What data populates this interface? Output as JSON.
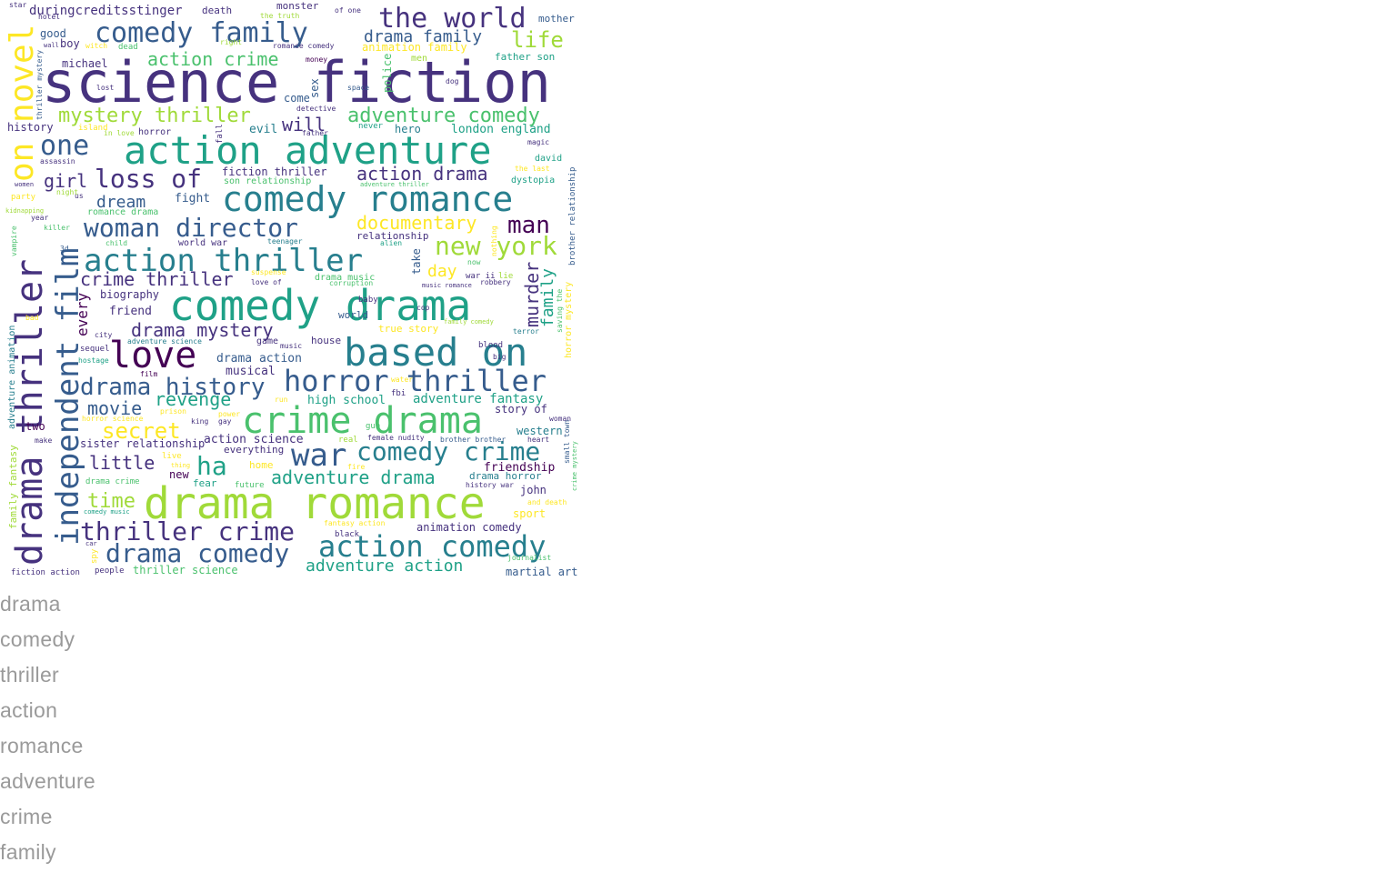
{
  "wordcloud": {
    "palette": [
      "#440154",
      "#46327e",
      "#365c8d",
      "#277f8e",
      "#1fa187",
      "#4ac16d",
      "#a0da39",
      "#fde725"
    ],
    "words": [
      {
        "text": "science fiction",
        "color": "#46327e"
      },
      {
        "text": "drama romance",
        "color": "#a0da39"
      },
      {
        "text": "action adventure",
        "color": "#1fa187"
      },
      {
        "text": "comedy drama",
        "color": "#1fa187"
      },
      {
        "text": "drama thriller",
        "color": "#46327e"
      },
      {
        "text": "comedy romance",
        "color": "#277f8e"
      },
      {
        "text": "based on",
        "color": "#277f8e"
      },
      {
        "text": "crime drama",
        "color": "#4ac16d"
      },
      {
        "text": "independent film",
        "color": "#365c8d"
      },
      {
        "text": "action thriller",
        "color": "#277f8e"
      },
      {
        "text": "horror thriller",
        "color": "#365c8d"
      },
      {
        "text": "the world",
        "color": "#46327e"
      },
      {
        "text": "comedy family",
        "color": "#365c8d"
      },
      {
        "text": "on novel",
        "color": "#fde725"
      },
      {
        "text": "love",
        "color": "#440154"
      },
      {
        "text": "woman director",
        "color": "#365c8d"
      },
      {
        "text": "action comedy",
        "color": "#277f8e"
      },
      {
        "text": "war",
        "color": "#365c8d"
      },
      {
        "text": "loss of",
        "color": "#46327e"
      },
      {
        "text": "drama history",
        "color": "#365c8d"
      },
      {
        "text": "thriller crime",
        "color": "#46327e"
      },
      {
        "text": "comedy crime",
        "color": "#277f8e"
      },
      {
        "text": "drama comedy",
        "color": "#365c8d"
      },
      {
        "text": "new york",
        "color": "#a0da39"
      },
      {
        "text": "man",
        "color": "#440154"
      },
      {
        "text": "one",
        "color": "#365c8d"
      },
      {
        "text": "ha",
        "color": "#1fa187"
      },
      {
        "text": "mystery thriller",
        "color": "#a0da39"
      },
      {
        "text": "adventure comedy",
        "color": "#4ac16d"
      },
      {
        "text": "life",
        "color": "#a0da39"
      },
      {
        "text": "secret",
        "color": "#fde725"
      },
      {
        "text": "adventure drama",
        "color": "#1fa187"
      },
      {
        "text": "documentary",
        "color": "#fde725"
      },
      {
        "text": "crime thriller",
        "color": "#46327e"
      },
      {
        "text": "drama mystery",
        "color": "#46327e"
      },
      {
        "text": "drama family",
        "color": "#365c8d"
      },
      {
        "text": "action crime",
        "color": "#4ac16d"
      },
      {
        "text": "action drama",
        "color": "#46327e"
      },
      {
        "text": "adventure action",
        "color": "#1fa187"
      },
      {
        "text": "time",
        "color": "#a0da39"
      },
      {
        "text": "movie",
        "color": "#365c8d"
      },
      {
        "text": "revenge",
        "color": "#1fa187"
      },
      {
        "text": "little",
        "color": "#46327e"
      },
      {
        "text": "will",
        "color": "#46327e"
      },
      {
        "text": "girl",
        "color": "#46327e"
      },
      {
        "text": "dream",
        "color": "#365c8d"
      },
      {
        "text": "murder",
        "color": "#46327e"
      },
      {
        "text": "family",
        "color": "#1fa187"
      },
      {
        "text": "day",
        "color": "#fde725"
      },
      {
        "text": "every",
        "color": "#440154"
      },
      {
        "text": "duringcreditsstinger",
        "color": "#46327e"
      },
      {
        "text": "adventure fantasy",
        "color": "#1fa187"
      },
      {
        "text": "high school",
        "color": "#1fa187"
      },
      {
        "text": "london england",
        "color": "#1fa187"
      },
      {
        "text": "friendship",
        "color": "#440154"
      },
      {
        "text": "animation comedy",
        "color": "#46327e"
      },
      {
        "text": "western",
        "color": "#277f8e"
      },
      {
        "text": "story of",
        "color": "#46327e"
      },
      {
        "text": "biography",
        "color": "#46327e"
      },
      {
        "text": "friend",
        "color": "#46327e"
      },
      {
        "text": "drama action",
        "color": "#365c8d"
      },
      {
        "text": "musical",
        "color": "#46327e"
      },
      {
        "text": "action science",
        "color": "#46327e"
      },
      {
        "text": "sister relationship",
        "color": "#46327e"
      },
      {
        "text": "thriller science",
        "color": "#4ac16d"
      },
      {
        "text": "martial art",
        "color": "#365c8d"
      },
      {
        "text": "animation family",
        "color": "#fde725"
      },
      {
        "text": "fiction thriller",
        "color": "#46327e"
      },
      {
        "text": "fight",
        "color": "#365c8d"
      },
      {
        "text": "good",
        "color": "#365c8d"
      },
      {
        "text": "boy",
        "color": "#46327e"
      },
      {
        "text": "michael",
        "color": "#46327e"
      },
      {
        "text": "evil",
        "color": "#277f8e"
      },
      {
        "text": "history",
        "color": "#46327e"
      },
      {
        "text": "two",
        "color": "#440154"
      },
      {
        "text": "new",
        "color": "#440154"
      },
      {
        "text": "john",
        "color": "#46327e"
      },
      {
        "text": "hero",
        "color": "#277f8e"
      },
      {
        "text": "sport",
        "color": "#fde725"
      },
      {
        "text": "father son",
        "color": "#1fa187"
      },
      {
        "text": "relationship",
        "color": "#46327e"
      },
      {
        "text": "drama horror",
        "color": "#277f8e"
      },
      {
        "text": "take",
        "color": "#365c8d"
      },
      {
        "text": "sex",
        "color": "#365c8d"
      },
      {
        "text": "police",
        "color": "#4ac16d"
      },
      {
        "text": "come",
        "color": "#365c8d"
      },
      {
        "text": "death",
        "color": "#46327e"
      },
      {
        "text": "monster",
        "color": "#46327e"
      },
      {
        "text": "mother",
        "color": "#365c8d"
      },
      {
        "text": "world",
        "color": "#365c8d"
      },
      {
        "text": "house",
        "color": "#46327e"
      },
      {
        "text": "everything",
        "color": "#46327e"
      },
      {
        "text": "true story",
        "color": "#fde725"
      },
      {
        "text": "drama music",
        "color": "#4ac16d"
      },
      {
        "text": "world war",
        "color": "#46327e"
      },
      {
        "text": "romance drama",
        "color": "#4ac16d"
      },
      {
        "text": "son relationship",
        "color": "#4ac16d"
      },
      {
        "text": "fear",
        "color": "#1fa187"
      },
      {
        "text": "home",
        "color": "#fde725"
      },
      {
        "text": "future",
        "color": "#4ac16d"
      },
      {
        "text": "game",
        "color": "#46327e"
      },
      {
        "text": "adventure science",
        "color": "#277f8e"
      },
      {
        "text": "family fantasy",
        "color": "#a0da39"
      },
      {
        "text": "adventure animation",
        "color": "#277f8e"
      },
      {
        "text": "brother relationship",
        "color": "#365c8d"
      },
      {
        "text": "horror mystery",
        "color": "#fde725"
      },
      {
        "text": "thriller mystery",
        "color": "#365c8d"
      },
      {
        "text": "drama crime",
        "color": "#4ac16d"
      },
      {
        "text": "david",
        "color": "#1fa187"
      },
      {
        "text": "dystopia",
        "color": "#1fa187"
      },
      {
        "text": "the last",
        "color": "#fde725"
      },
      {
        "text": "magic",
        "color": "#46327e"
      },
      {
        "text": "hotel",
        "color": "#46327e"
      },
      {
        "text": "star",
        "color": "#46327e"
      },
      {
        "text": "the truth",
        "color": "#a0da39"
      },
      {
        "text": "of one",
        "color": "#46327e"
      },
      {
        "text": "right",
        "color": "#a0da39"
      },
      {
        "text": "romance comedy",
        "color": "#46327e"
      },
      {
        "text": "witch",
        "color": "#fde725"
      },
      {
        "text": "dead",
        "color": "#4ac16d"
      },
      {
        "text": "money",
        "color": "#440154"
      },
      {
        "text": "men",
        "color": "#a0da39"
      },
      {
        "text": "dog",
        "color": "#46327e"
      },
      {
        "text": "space",
        "color": "#365c8d"
      },
      {
        "text": "lost",
        "color": "#46327e"
      },
      {
        "text": "detective",
        "color": "#46327e"
      },
      {
        "text": "never",
        "color": "#1fa187"
      },
      {
        "text": "father",
        "color": "#46327e"
      },
      {
        "text": "island",
        "color": "#fde725"
      },
      {
        "text": "horror",
        "color": "#46327e"
      },
      {
        "text": "in love",
        "color": "#a0da39"
      },
      {
        "text": "fall",
        "color": "#46327e"
      },
      {
        "text": "assassin",
        "color": "#46327e"
      },
      {
        "text": "women",
        "color": "#46327e"
      },
      {
        "text": "party",
        "color": "#fde725"
      },
      {
        "text": "night",
        "color": "#a0da39"
      },
      {
        "text": "us",
        "color": "#46327e"
      },
      {
        "text": "kidnapping",
        "color": "#a0da39"
      },
      {
        "text": "year",
        "color": "#46327e"
      },
      {
        "text": "killer",
        "color": "#4ac16d"
      },
      {
        "text": "vampire",
        "color": "#4ac16d"
      },
      {
        "text": "3d",
        "color": "#365c8d"
      },
      {
        "text": "child",
        "color": "#4ac16d"
      },
      {
        "text": "teenager",
        "color": "#277f8e"
      },
      {
        "text": "alien",
        "color": "#1fa187"
      },
      {
        "text": "nothing",
        "color": "#fde725"
      },
      {
        "text": "adventure thriller",
        "color": "#4ac16d"
      },
      {
        "text": "now",
        "color": "#4ac16d"
      },
      {
        "text": "war ii",
        "color": "#46327e"
      },
      {
        "text": "lie",
        "color": "#a0da39"
      },
      {
        "text": "robbery",
        "color": "#46327e"
      },
      {
        "text": "suspense",
        "color": "#fde725"
      },
      {
        "text": "love of",
        "color": "#46327e"
      },
      {
        "text": "corruption",
        "color": "#4ac16d"
      },
      {
        "text": "music romance",
        "color": "#46327e"
      },
      {
        "text": "cop",
        "color": "#46327e"
      },
      {
        "text": "baby",
        "color": "#46327e"
      },
      {
        "text": "family comedy",
        "color": "#a0da39"
      },
      {
        "text": "saving the",
        "color": "#4ac16d"
      },
      {
        "text": "terror",
        "color": "#277f8e"
      },
      {
        "text": "bad",
        "color": "#fde725"
      },
      {
        "text": "city",
        "color": "#46327e"
      },
      {
        "text": "music",
        "color": "#46327e"
      },
      {
        "text": "blood",
        "color": "#46327e"
      },
      {
        "text": "big",
        "color": "#46327e"
      },
      {
        "text": "sequel",
        "color": "#46327e"
      },
      {
        "text": "hostage",
        "color": "#1fa187"
      },
      {
        "text": "film",
        "color": "#440154"
      },
      {
        "text": "water",
        "color": "#fde725"
      },
      {
        "text": "run",
        "color": "#fde725"
      },
      {
        "text": "fbi",
        "color": "#46327e"
      },
      {
        "text": "prison",
        "color": "#fde725"
      },
      {
        "text": "power",
        "color": "#fde725"
      },
      {
        "text": "horror science",
        "color": "#fde725"
      },
      {
        "text": "king",
        "color": "#46327e"
      },
      {
        "text": "gay",
        "color": "#46327e"
      },
      {
        "text": "gun",
        "color": "#4ac16d"
      },
      {
        "text": "woman",
        "color": "#46327e"
      },
      {
        "text": "make",
        "color": "#46327e"
      },
      {
        "text": "female nudity",
        "color": "#46327e"
      },
      {
        "text": "real",
        "color": "#a0da39"
      },
      {
        "text": "brother brother",
        "color": "#365c8d"
      },
      {
        "text": "heart",
        "color": "#46327e"
      },
      {
        "text": "small town",
        "color": "#365c8d"
      },
      {
        "text": "crime mystery",
        "color": "#4ac16d"
      },
      {
        "text": "live",
        "color": "#fde725"
      },
      {
        "text": "thing",
        "color": "#fde725"
      },
      {
        "text": "fire",
        "color": "#fde725"
      },
      {
        "text": "history war",
        "color": "#46327e"
      },
      {
        "text": "and death",
        "color": "#fde725"
      },
      {
        "text": "comedy music",
        "color": "#1fa187"
      },
      {
        "text": "spy",
        "color": "#fde725"
      },
      {
        "text": "fantasy action",
        "color": "#fde725"
      },
      {
        "text": "black",
        "color": "#46327e"
      },
      {
        "text": "car",
        "color": "#46327e"
      },
      {
        "text": "journalist",
        "color": "#4ac16d"
      },
      {
        "text": "fiction action",
        "color": "#46327e"
      },
      {
        "text": "people",
        "color": "#46327e"
      },
      {
        "text": "wall",
        "color": "#46327e"
      }
    ]
  },
  "terms": [
    "drama",
    "comedy",
    "thriller",
    "action",
    "romance",
    "adventure",
    "crime",
    "family"
  ]
}
